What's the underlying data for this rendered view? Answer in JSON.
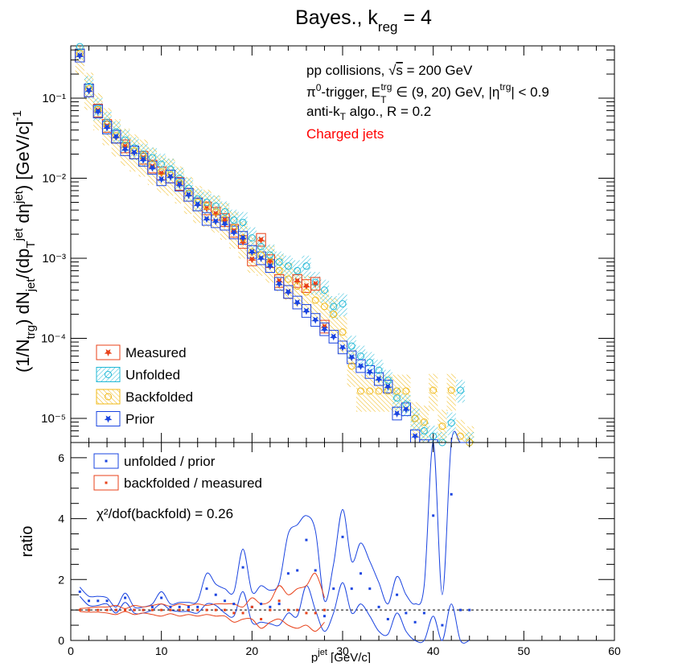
{
  "chart_data": [
    {
      "type": "scatter",
      "panel": "spectrum",
      "title": "Bayes., k_reg = 4",
      "title_main": "Bayes., k",
      "title_sub": "reg",
      "title_tail": " = 4",
      "ylabel": "(1/N_trg) dN_jet/(dp_T^jet dη^jet) [GeV/c]^-1",
      "xlim": [
        0,
        60
      ],
      "ylim": [
        5e-06,
        0.45
      ],
      "yscale": "log",
      "ytick_labels": [
        "10⁻⁵",
        "10⁻⁴",
        "10⁻³",
        "10⁻²",
        "10⁻¹"
      ],
      "annotations": [
        "pp collisions, √s = 200 GeV",
        "π⁰-trigger, E_T^trg ∈ (9, 20) GeV, |η^trg| < 0.9",
        "anti-k_T algo., R = 0.2",
        "Charged jets"
      ],
      "legend_position": "bottom-left",
      "series": [
        {
          "name": "Measured",
          "color": "#e8421a",
          "marker": "star",
          "x": [
            1,
            2,
            3,
            4,
            5,
            6,
            7,
            8,
            9,
            10,
            11,
            12,
            13,
            14,
            15,
            16,
            17,
            18,
            19,
            20,
            21,
            22,
            23,
            24,
            25,
            26,
            27,
            28
          ],
          "y": [
            0.34,
            0.125,
            0.07,
            0.045,
            0.033,
            0.025,
            0.021,
            0.018,
            0.014,
            0.0115,
            0.0105,
            0.0085,
            0.0062,
            0.0047,
            0.0042,
            0.0036,
            0.003,
            0.0022,
            0.0016,
            0.00097,
            0.0017,
            0.00092,
            0.00052,
            0.00038,
            0.00052,
            0.00045,
            0.00048,
            0.00014
          ]
        },
        {
          "name": "Unfolded",
          "color": "#21b8d6",
          "marker": "open-circle",
          "x": [
            1,
            2,
            3,
            4,
            5,
            6,
            7,
            8,
            9,
            10,
            11,
            12,
            13,
            14,
            15,
            16,
            17,
            18,
            19,
            20,
            21,
            22,
            23,
            24,
            25,
            26,
            27,
            28,
            29,
            30,
            31,
            32,
            33,
            34,
            35,
            36,
            37,
            38,
            39,
            40,
            41,
            42,
            43,
            44
          ],
          "y": [
            0.44,
            0.14,
            0.075,
            0.05,
            0.038,
            0.03,
            0.024,
            0.02,
            0.018,
            0.015,
            0.013,
            0.01,
            0.0075,
            0.0055,
            0.005,
            0.0045,
            0.0038,
            0.003,
            0.0028,
            0.0018,
            0.0014,
            0.0011,
            0.0009,
            0.0008,
            0.0007,
            0.0008,
            0.0005,
            0.0004,
            0.00025,
            0.00027,
            8e-05,
            6e-05,
            5e-05,
            4e-05,
            3e-05,
            1.8e-05,
            1.5e-05,
            1e-05,
            7e-06,
            6e-06,
            5e-06,
            8.8e-06,
            2.25e-05,
            5e-06
          ]
        },
        {
          "name": "Backfolded",
          "color": "#f0b814",
          "marker": "open-circle",
          "x": [
            1,
            2,
            3,
            4,
            5,
            6,
            7,
            8,
            9,
            10,
            11,
            12,
            13,
            14,
            15,
            16,
            17,
            18,
            19,
            20,
            21,
            22,
            23,
            24,
            25,
            26,
            27,
            28,
            29,
            30,
            31,
            32,
            33,
            34,
            35,
            36,
            37,
            38,
            39,
            40,
            41,
            42,
            43,
            44
          ],
          "y": [
            0.36,
            0.13,
            0.072,
            0.047,
            0.034,
            0.026,
            0.022,
            0.019,
            0.015,
            0.012,
            0.011,
            0.0088,
            0.0065,
            0.005,
            0.0045,
            0.0038,
            0.0031,
            0.0024,
            0.0018,
            0.0012,
            0.0011,
            0.0009,
            0.0007,
            0.00055,
            0.00045,
            0.00038,
            0.0003,
            0.00025,
            0.0002,
            0.00012,
            4.5e-05,
            2.2e-05,
            2.2e-05,
            2.2e-05,
            2.2e-05,
            2.2e-05,
            2.2e-05,
            1e-05,
            9e-06,
            2.25e-05,
            8e-06,
            2.25e-05,
            6e-06,
            5e-06
          ]
        },
        {
          "name": "Prior",
          "color": "#1a44e0",
          "marker": "star",
          "x": [
            1,
            2,
            3,
            4,
            5,
            6,
            7,
            8,
            9,
            10,
            11,
            12,
            13,
            14,
            15,
            16,
            17,
            18,
            19,
            20,
            21,
            22,
            23,
            24,
            25,
            26,
            27,
            28,
            29,
            30,
            31,
            32,
            33,
            34,
            35,
            36,
            37,
            38,
            39,
            40
          ],
          "y": [
            0.34,
            0.125,
            0.068,
            0.043,
            0.033,
            0.023,
            0.021,
            0.017,
            0.0135,
            0.0097,
            0.0105,
            0.0083,
            0.0062,
            0.0047,
            0.0031,
            0.0029,
            0.0027,
            0.0021,
            0.0018,
            0.0012,
            0.001,
            0.0008,
            0.00048,
            0.00038,
            0.00028,
            0.00022,
            0.00017,
            0.00013,
            0.000105,
            7.7e-05,
            5.8e-05,
            4.5e-05,
            3.8e-05,
            3.1e-05,
            2.5e-05,
            1.15e-05,
            1.3e-05,
            6e-06,
            4.5e-06,
            4.5e-06
          ]
        }
      ]
    },
    {
      "type": "line",
      "panel": "ratio",
      "xlabel": "p_T^jet [GeV/c]",
      "xlabel_main": "p",
      "xlabel_sup": "jet",
      "xlabel_tail": " [GeV/c]",
      "ylabel": "ratio",
      "xlim": [
        0,
        60
      ],
      "ylim": [
        0,
        6.5
      ],
      "xticks": [
        0,
        10,
        20,
        30,
        40,
        50,
        60
      ],
      "yticks": [
        0,
        2,
        4,
        6
      ],
      "reference_line": 1,
      "annotation": "χ²/dof(backfold) = 0.26",
      "legend_position": "top-left",
      "series": [
        {
          "name": "unfolded / prior",
          "color": "#1a44e0",
          "x": [
            1,
            2,
            3,
            4,
            5,
            6,
            7,
            8,
            9,
            10,
            11,
            12,
            13,
            14,
            15,
            16,
            17,
            18,
            19,
            20,
            21,
            22,
            23,
            24,
            25,
            26,
            27,
            28,
            29,
            30,
            31,
            32,
            33,
            34,
            35,
            36,
            37,
            38,
            39,
            40,
            41,
            42,
            43,
            44
          ],
          "y": [
            1.6,
            1.3,
            1.3,
            1.3,
            1.0,
            1.4,
            1.0,
            1.0,
            1.1,
            1.4,
            1.1,
            1.1,
            1.1,
            1.1,
            1.7,
            1.5,
            1.3,
            1.2,
            2.4,
            1.1,
            1.2,
            1.1,
            1.2,
            2.2,
            2.3,
            3.3,
            2.3,
            0.8,
            1.7,
            3.4,
            1.7,
            2.2,
            1.7,
            1.1,
            0.7,
            1.5,
            0.9,
            0.6,
            0.9,
            4.1,
            0.5,
            4.8,
            1.0,
            1.0
          ],
          "band_low": [
            1.45,
            1.15,
            1.15,
            1.2,
            0.9,
            1.25,
            0.9,
            0.9,
            1.0,
            1.2,
            1.0,
            0.95,
            0.95,
            0.9,
            1.2,
            1.15,
            0.9,
            0.8,
            1.6,
            0.6,
            0.6,
            0.55,
            0.5,
            0.9,
            0.8,
            1.8,
            1.0,
            0.3,
            0.9,
            1.9,
            0.9,
            1.2,
            0.8,
            0.3,
            0.2,
            0.9,
            0.3,
            0.0,
            0.0,
            0.8,
            0.0,
            1.2,
            0.0,
            0.0
          ],
          "band_high": [
            1.75,
            1.45,
            1.45,
            1.4,
            1.1,
            1.55,
            1.1,
            1.1,
            1.2,
            1.6,
            1.2,
            1.25,
            1.25,
            1.3,
            2.2,
            1.85,
            1.7,
            1.6,
            3.0,
            1.6,
            1.8,
            1.65,
            1.9,
            3.5,
            3.8,
            4.1,
            3.6,
            1.3,
            2.5,
            4.3,
            2.6,
            3.2,
            2.6,
            1.9,
            1.2,
            2.1,
            1.5,
            1.2,
            1.8,
            6.5,
            1.5,
            6.5,
            6.5,
            6.5
          ]
        },
        {
          "name": "backfolded / measured",
          "color": "#e8421a",
          "x": [
            1,
            2,
            3,
            4,
            5,
            6,
            7,
            8,
            9,
            10,
            11,
            12,
            13,
            14,
            15,
            16,
            17,
            18,
            19,
            20,
            21,
            22,
            23,
            24,
            25,
            26,
            27,
            28
          ],
          "y": [
            1.0,
            1.0,
            1.0,
            1.0,
            1.0,
            1.0,
            1.0,
            1.0,
            1.0,
            1.0,
            1.0,
            1.0,
            1.0,
            1.0,
            1.0,
            1.0,
            1.0,
            0.9,
            0.9,
            1.1,
            0.7,
            1.0,
            1.3,
            1.0,
            1.0,
            0.9,
            0.9,
            1.0
          ],
          "band_low": [
            0.95,
            0.93,
            0.93,
            0.9,
            0.85,
            0.95,
            0.85,
            0.9,
            0.85,
            0.8,
            0.88,
            0.8,
            0.85,
            0.8,
            0.85,
            0.8,
            0.8,
            0.6,
            0.7,
            0.7,
            0.4,
            0.6,
            0.7,
            0.5,
            0.4,
            0.5,
            0.3,
            0.6
          ],
          "band_high": [
            1.05,
            1.07,
            1.1,
            1.1,
            1.15,
            1.05,
            1.15,
            1.1,
            1.15,
            1.2,
            1.12,
            1.2,
            1.15,
            1.2,
            1.15,
            1.2,
            1.2,
            1.2,
            1.1,
            1.4,
            1.2,
            1.3,
            1.8,
            1.5,
            1.7,
            1.8,
            2.2,
            1.4
          ]
        }
      ]
    }
  ]
}
